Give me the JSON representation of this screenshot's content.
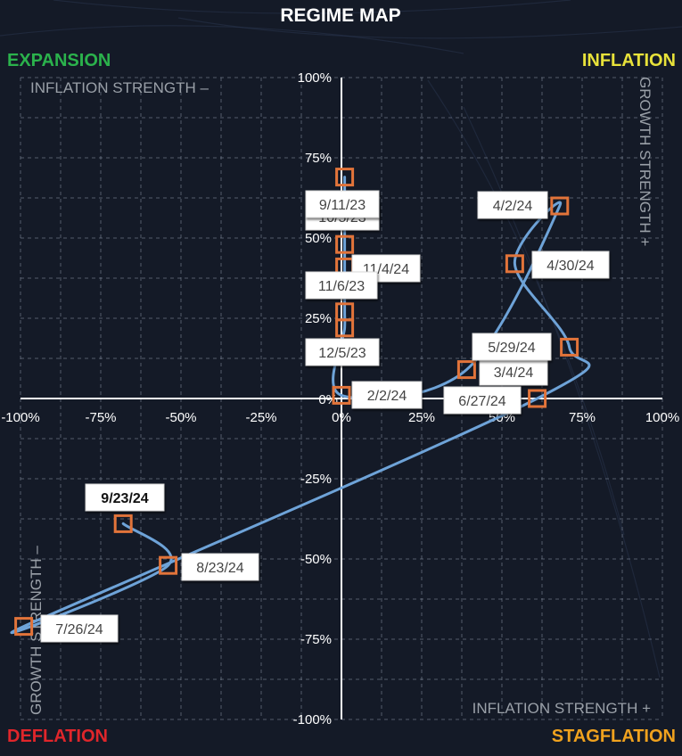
{
  "chart_data": {
    "type": "scatter",
    "title": "REGIME MAP",
    "xlim": [
      -100,
      100
    ],
    "ylim": [
      -100,
      100
    ],
    "grid": true,
    "x_ticks": [
      "-100%",
      "-75%",
      "-50%",
      "-25%",
      "0%",
      "25%",
      "50%",
      "75%",
      "100%"
    ],
    "y_ticks": [
      "100%",
      "75%",
      "50%",
      "25%",
      "0%",
      "-25%",
      "-50%",
      "-75%",
      "-100%"
    ],
    "quadrant_labels": {
      "top_left": {
        "text": "EXPANSION",
        "color": "#2bb24c"
      },
      "top_right": {
        "text": "INFLATION",
        "color": "#e8e23a"
      },
      "bottom_left": {
        "text": "DEFLATION",
        "color": "#e0262b"
      },
      "bottom_right": {
        "text": "STAGFLATION",
        "color": "#f0a21e"
      }
    },
    "axis_labels": {
      "top": "INFLATION STRENGTH –",
      "right": "GROWTH STRENGTH +",
      "bottom": "INFLATION STRENGTH +",
      "left": "GROWTH STRENGTH –"
    },
    "points": [
      {
        "label": "",
        "x": 1,
        "y": 69
      },
      {
        "label": "9/11/23",
        "x": 1,
        "y": 59
      },
      {
        "label": "10/5/23",
        "x": 1,
        "y": 48
      },
      {
        "label": "11/4/24",
        "x": 1,
        "y": 41
      },
      {
        "label": "11/6/23",
        "x": 1,
        "y": 27
      },
      {
        "label": "12/5/23",
        "x": 1,
        "y": 22
      },
      {
        "label": "2/2/24",
        "x": 0,
        "y": 1
      },
      {
        "label": "3/4/24",
        "x": 39,
        "y": 9
      },
      {
        "label": "4/2/24",
        "x": 68,
        "y": 60
      },
      {
        "label": "4/30/24",
        "x": 54,
        "y": 42
      },
      {
        "label": "5/29/24",
        "x": 71,
        "y": 16
      },
      {
        "label": "6/27/24",
        "x": 61,
        "y": 0
      },
      {
        "label": "7/26/24",
        "x": -99,
        "y": -71
      },
      {
        "label": "8/23/24",
        "x": -54,
        "y": -52
      },
      {
        "label": "9/23/24",
        "x": -68,
        "y": -39
      }
    ],
    "line_color": "#6ea3d8",
    "marker_color": "#e2743a"
  }
}
